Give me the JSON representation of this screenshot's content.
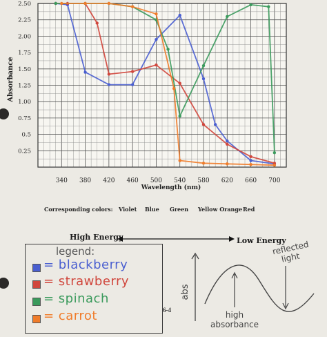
{
  "chart_data": {
    "type": "line",
    "xlabel": "Wavelength (nm)",
    "ylabel": "Absorbance",
    "xlim": [
      300,
      720
    ],
    "ylim": [
      0,
      2.5
    ],
    "xticks": [
      340,
      380,
      420,
      460,
      500,
      540,
      580,
      620,
      660,
      700
    ],
    "yticks": [
      0.25,
      0.5,
      0.75,
      1.0,
      1.25,
      1.5,
      1.75,
      2.0,
      2.25,
      2.5
    ],
    "ytick_labels": [
      "0.25",
      "0.5",
      "0.75",
      "1.00",
      "1.25",
      "1.50",
      "1.75",
      "2.00",
      "2.25",
      "2.50"
    ],
    "grid": true,
    "series": [
      {
        "name": "blackberry",
        "color": "#4a5fd0",
        "points": [
          [
            330,
            2.5
          ],
          [
            350,
            2.48
          ],
          [
            380,
            1.45
          ],
          [
            420,
            1.26
          ],
          [
            460,
            1.26
          ],
          [
            500,
            1.95
          ],
          [
            540,
            2.32
          ],
          [
            580,
            1.35
          ],
          [
            600,
            0.65
          ],
          [
            620,
            0.4
          ],
          [
            660,
            0.1
          ],
          [
            700,
            0.05
          ]
        ]
      },
      {
        "name": "strawberry",
        "color": "#d0463c",
        "points": [
          [
            330,
            2.5
          ],
          [
            350,
            2.5
          ],
          [
            380,
            2.5
          ],
          [
            400,
            2.2
          ],
          [
            420,
            1.42
          ],
          [
            460,
            1.46
          ],
          [
            500,
            1.56
          ],
          [
            540,
            1.28
          ],
          [
            580,
            0.65
          ],
          [
            620,
            0.35
          ],
          [
            660,
            0.16
          ],
          [
            700,
            0.06
          ]
        ]
      },
      {
        "name": "spinach",
        "color": "#3a9a5c",
        "points": [
          [
            330,
            2.5
          ],
          [
            380,
            2.5
          ],
          [
            420,
            2.5
          ],
          [
            460,
            2.45
          ],
          [
            500,
            2.25
          ],
          [
            520,
            1.8
          ],
          [
            540,
            0.78
          ],
          [
            580,
            1.55
          ],
          [
            620,
            2.3
          ],
          [
            660,
            2.48
          ],
          [
            690,
            2.45
          ],
          [
            700,
            0.22
          ]
        ]
      },
      {
        "name": "carrot",
        "color": "#f07c2a",
        "points": [
          [
            340,
            2.5
          ],
          [
            380,
            2.5
          ],
          [
            420,
            2.5
          ],
          [
            460,
            2.45
          ],
          [
            500,
            2.34
          ],
          [
            530,
            1.2
          ],
          [
            540,
            0.1
          ],
          [
            580,
            0.06
          ],
          [
            620,
            0.05
          ],
          [
            660,
            0.04
          ],
          [
            700,
            0.03
          ]
        ]
      }
    ]
  },
  "corresponding_colors": {
    "label": "Corresponding colors:",
    "items": [
      "Violet",
      "Blue",
      "Green",
      "Yellow Orange",
      "Red"
    ]
  },
  "energy": {
    "high": "High Energy",
    "low": "Low Energy"
  },
  "legend": {
    "title": "legend:",
    "items": [
      {
        "text": "= blackberry",
        "color": "#4a5fd0"
      },
      {
        "text": "= strawberry",
        "color": "#d0463c"
      },
      {
        "text": "= spinach",
        "color": "#3a9a5c"
      },
      {
        "text": "= carrot",
        "color": "#f07c2a"
      }
    ]
  },
  "sketch": {
    "axis_label": "abs",
    "reflected": "reflected light",
    "reflected_line1": "reflected",
    "reflected_line2": "light",
    "high_line1": "high",
    "high_line2": "absorbance"
  },
  "page_number": "6-4"
}
